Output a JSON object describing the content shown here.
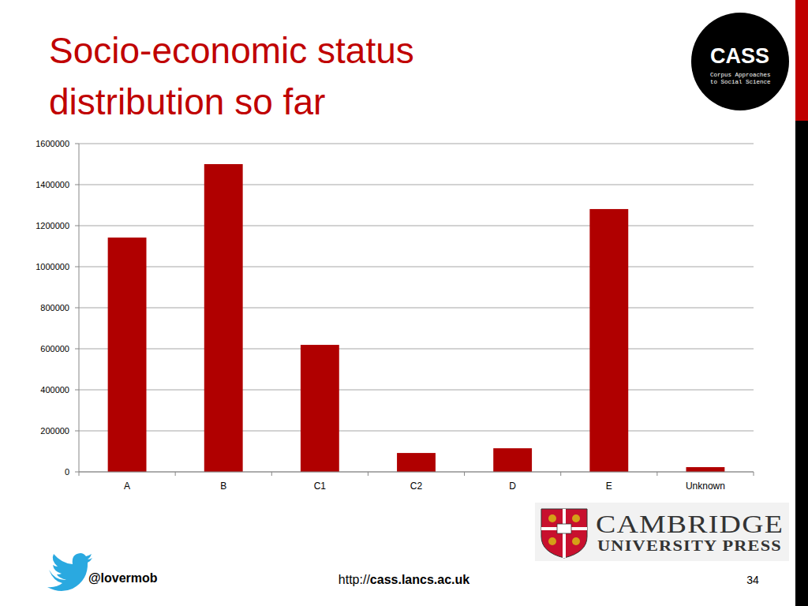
{
  "chart_data": {
    "type": "bar",
    "title": "Socio-economic status distribution so far",
    "categories": [
      "A",
      "B",
      "C1",
      "C2",
      "D",
      "E",
      "Unknown"
    ],
    "values": [
      1142000,
      1500000,
      619000,
      92000,
      115000,
      1281000,
      23000
    ],
    "color": "#b00000",
    "ylim": [
      0,
      1600000
    ],
    "yticks": [
      0,
      200000,
      400000,
      600000,
      800000,
      1000000,
      1200000,
      1400000,
      1600000
    ],
    "grid": true
  },
  "logos": {
    "cass": {
      "title": "CASS",
      "lines": [
        "Corpus Approaches",
        "to Social Science"
      ]
    },
    "publisher": {
      "name": "CAMBRIDGE",
      "subtitle": "UNIVERSITY PRESS"
    }
  },
  "footer": {
    "twitter": "@lovermob",
    "url": "http://cass.lancs.ac.uk",
    "page": "34"
  }
}
